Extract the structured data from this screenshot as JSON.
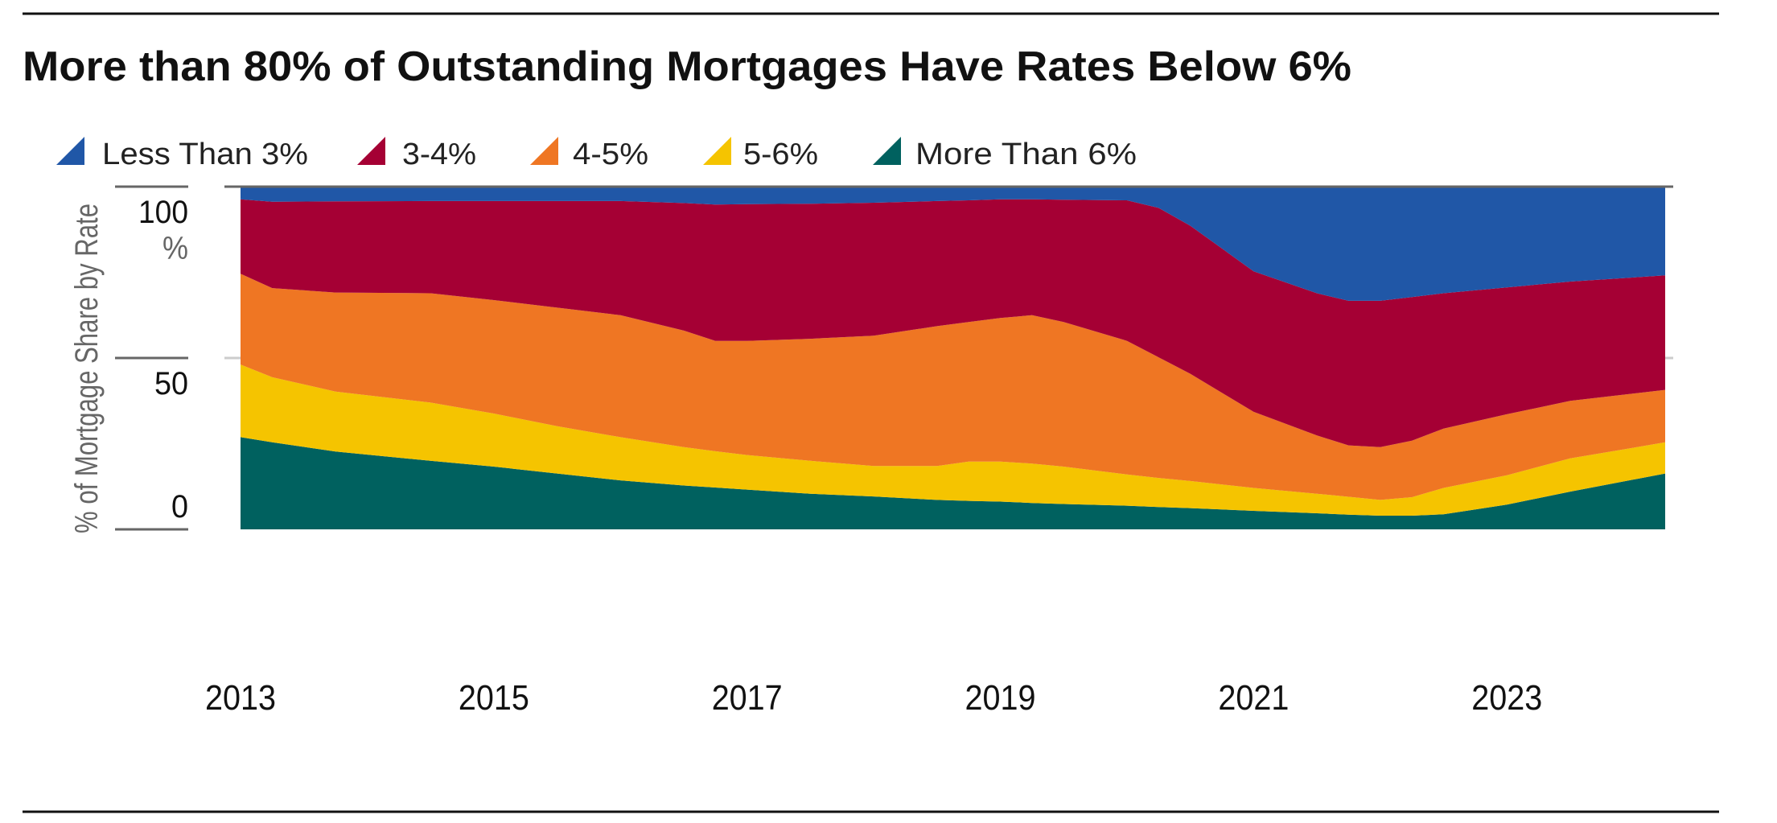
{
  "chart_data": {
    "type": "area",
    "stacked": true,
    "title": "More than 80% of Outstanding Mortgages Have Rates Below 6%",
    "xlabel": "",
    "ylabel": "% of Mortgage Share by Rate",
    "ylim": [
      0,
      100
    ],
    "xlim": [
      2013,
      2024.25
    ],
    "y_ticks": [
      "100",
      "50",
      "0"
    ],
    "y_unit_label": "%",
    "x_ticks": [
      "2013",
      "2015",
      "2017",
      "2019",
      "2021",
      "2023"
    ],
    "x_tick_values": [
      2013,
      2015,
      2017,
      2019,
      2021,
      2023
    ],
    "grid": true,
    "legend_position": "top-left",
    "x": [
      2013,
      2013.25,
      2013.75,
      2014.5,
      2015,
      2015.5,
      2016,
      2016.5,
      2016.75,
      2017,
      2017.5,
      2018,
      2018.5,
      2018.75,
      2019,
      2019.25,
      2019.5,
      2020,
      2020.25,
      2020.5,
      2021,
      2021.5,
      2021.75,
      2022,
      2022.25,
      2022.5,
      2023,
      2023.5,
      2024.25
    ],
    "series": [
      {
        "name": "More Than 6%",
        "color": "#00615F",
        "values": [
          26.9,
          25.4,
          22.7,
          20.0,
          18.3,
          16.3,
          14.3,
          12.8,
          12.2,
          11.6,
          10.4,
          9.6,
          8.6,
          8.3,
          8.1,
          7.7,
          7.4,
          6.9,
          6.5,
          6.2,
          5.4,
          4.7,
          4.3,
          4.0,
          4.0,
          4.4,
          7.2,
          11.0,
          16.3
        ]
      },
      {
        "name": "5-6%",
        "color": "#F5C400",
        "values": [
          21.2,
          19.0,
          17.5,
          17.0,
          15.5,
          13.8,
          12.6,
          11.2,
          10.6,
          10.1,
          9.6,
          8.9,
          9.9,
          11.5,
          11.7,
          11.5,
          10.9,
          9.1,
          8.5,
          7.9,
          6.7,
          5.7,
          5.2,
          4.6,
          5.4,
          7.7,
          8.6,
          9.7,
          9.1
        ]
      },
      {
        "name": "4-5%",
        "color": "#EF7623",
        "values": [
          26.5,
          26.0,
          28.9,
          31.9,
          33.1,
          34.6,
          35.6,
          34.0,
          32.2,
          33.3,
          35.6,
          38.0,
          40.8,
          40.7,
          41.9,
          43.3,
          42.2,
          39.0,
          35.2,
          31.3,
          22.2,
          17.0,
          15.0,
          15.4,
          16.5,
          17.3,
          17.8,
          16.8,
          15.3
        ]
      },
      {
        "name": "3-4%",
        "color": "#A50034",
        "values": [
          21.7,
          25.2,
          26.6,
          26.9,
          28.9,
          31.1,
          33.3,
          37.2,
          39.8,
          39.9,
          39.4,
          38.8,
          36.5,
          35.5,
          34.6,
          33.8,
          35.7,
          41.0,
          43.6,
          43.2,
          41.0,
          41.5,
          42.2,
          42.7,
          41.9,
          39.5,
          37.0,
          34.8,
          33.4
        ]
      },
      {
        "name": "Less Than 3%",
        "color": "#2057A7",
        "values": [
          3.7,
          4.4,
          4.3,
          4.2,
          4.2,
          4.2,
          4.2,
          4.8,
          5.2,
          5.1,
          5.0,
          4.7,
          4.2,
          4.0,
          3.7,
          3.7,
          3.8,
          4.0,
          6.2,
          11.4,
          24.7,
          31.1,
          33.3,
          33.3,
          32.2,
          31.1,
          29.4,
          27.7,
          25.9
        ]
      }
    ],
    "legend": [
      "Less Than 3%",
      "3-4%",
      "4-5%",
      "5-6%",
      "More Than 6%"
    ]
  }
}
